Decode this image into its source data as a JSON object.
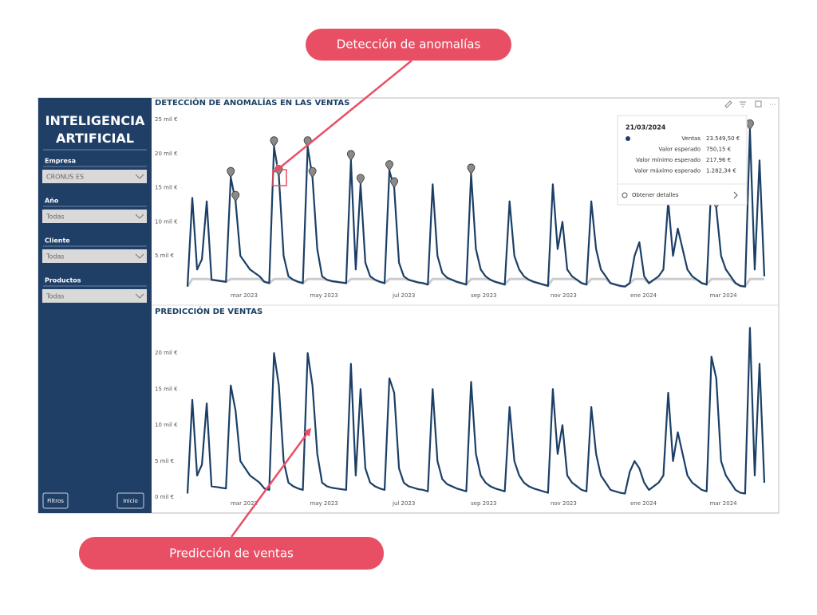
{
  "callouts": {
    "top": "Detección de anomalías",
    "bottom": "Predicción de ventas"
  },
  "sidebar": {
    "title": "INTELIGENCIA ARTIFICIAL",
    "filters": [
      {
        "label": "Empresa",
        "value": "CRONUS ES"
      },
      {
        "label": "Año",
        "value": "Todas"
      },
      {
        "label": "Cliente",
        "value": "Todas"
      },
      {
        "label": "Productos",
        "value": "Todas"
      }
    ],
    "buttons": [
      "Filtros",
      "Inicio"
    ]
  },
  "tooltip": {
    "date": "21/03/2024",
    "rows": [
      {
        "label": "Ventas",
        "value": "23.549,50 €"
      },
      {
        "label": "Valor esperado",
        "value": "750,15 €"
      },
      {
        "label": "Valor mínimo esperado",
        "value": "217,96 €"
      },
      {
        "label": "Valor máximo esperado",
        "value": "1.282,34 €"
      }
    ],
    "action": "Obtener detalles"
  },
  "chart_data": [
    {
      "type": "line",
      "title": "DETECCIÓN DE ANOMALÍAS EN LAS VENTAS",
      "color": "#1b3f66",
      "anomaly_color": "#8a8a8a",
      "xlabels": [
        "mar 2023",
        "may 2023",
        "jul 2023",
        "sep 2023",
        "nov 2023",
        "ene 2024",
        "mar 2024"
      ],
      "ylim": [
        0,
        25
      ],
      "yticks": [
        {
          "value": 5,
          "label": "5 mil €"
        },
        {
          "value": 10,
          "label": "10 mil €"
        },
        {
          "value": 15,
          "label": "15 mil €"
        },
        {
          "value": 20,
          "label": "20 mil €"
        },
        {
          "value": 25,
          "label": "25 mil €"
        }
      ],
      "values": [
        0.5,
        13.5,
        3,
        4.5,
        13,
        1.5,
        1.4,
        1.3,
        1.2,
        16.5,
        13,
        5,
        4,
        3,
        2.5,
        2,
        1.2,
        1,
        21,
        16.8,
        5,
        2,
        1.5,
        1.2,
        1,
        21,
        16.5,
        6,
        2,
        1.5,
        1.3,
        1.2,
        1.1,
        1,
        19,
        3,
        15.5,
        4,
        2,
        1.5,
        1.2,
        1,
        17.5,
        15,
        4,
        2,
        1.5,
        1.3,
        1.1,
        1,
        0.8,
        15.5,
        5,
        2.5,
        1.8,
        1.5,
        1.2,
        1,
        0.8,
        17,
        6,
        3,
        2,
        1.5,
        1.2,
        1,
        0.8,
        13,
        5,
        3,
        2,
        1.5,
        1.2,
        1,
        0.8,
        0.6,
        15.5,
        6,
        10,
        3,
        2,
        1.5,
        1,
        0.8,
        13,
        6,
        3,
        2,
        1,
        0.8,
        0.6,
        0.5,
        1,
        5,
        7,
        2,
        1,
        1.5,
        2,
        3,
        13,
        5,
        9,
        6,
        3,
        2,
        1.5,
        1,
        0.8,
        16,
        12,
        5,
        3,
        2,
        1,
        0.6,
        0.5,
        23.5,
        3,
        19,
        2
      ],
      "anomalies": [
        9,
        10,
        18,
        19,
        25,
        26,
        34,
        36,
        42,
        43,
        59,
        109,
        110,
        117
      ]
    },
    {
      "type": "line",
      "title": "PREDICCIÓN DE VENTAS",
      "color": "#1b3f66",
      "xlabels": [
        "mar 2023",
        "may 2023",
        "jul 2023",
        "sep 2023",
        "nov 2023",
        "ene 2024",
        "mar 2024"
      ],
      "ylim": [
        0,
        25
      ],
      "yticks": [
        {
          "value": 0,
          "label": "0 mil €"
        },
        {
          "value": 5,
          "label": "5 mil €"
        },
        {
          "value": 10,
          "label": "10 mil €"
        },
        {
          "value": 15,
          "label": "15 mil €"
        },
        {
          "value": 20,
          "label": "20 mil €"
        }
      ],
      "values": [
        0.5,
        13.5,
        3,
        4.5,
        13,
        1.5,
        1.4,
        1.3,
        1.2,
        15.5,
        12,
        5,
        4,
        3,
        2.5,
        2,
        1.2,
        1,
        20,
        15.5,
        5,
        2,
        1.5,
        1.2,
        1,
        20,
        15.5,
        6,
        2,
        1.5,
        1.3,
        1.2,
        1.1,
        1,
        18.5,
        3,
        15,
        4,
        2,
        1.5,
        1.2,
        1,
        16.5,
        14.5,
        4,
        2,
        1.5,
        1.3,
        1.1,
        1,
        0.8,
        15,
        5,
        2.5,
        1.8,
        1.5,
        1.2,
        1,
        0.8,
        16,
        6,
        3,
        2,
        1.5,
        1.2,
        1,
        0.8,
        12.5,
        5,
        3,
        2,
        1.5,
        1.2,
        1,
        0.8,
        0.6,
        15,
        6,
        10,
        3,
        2,
        1.5,
        1,
        0.8,
        12.5,
        6,
        3,
        2,
        1,
        0.8,
        0.6,
        0.5,
        3.5,
        5,
        4,
        2,
        1,
        1.5,
        2,
        3,
        14.5,
        5,
        9,
        6,
        3,
        2,
        1.5,
        1,
        0.8,
        19.5,
        16.5,
        5,
        3,
        2,
        1,
        0.6,
        0.5,
        23.5,
        3,
        18.5,
        2
      ]
    }
  ]
}
